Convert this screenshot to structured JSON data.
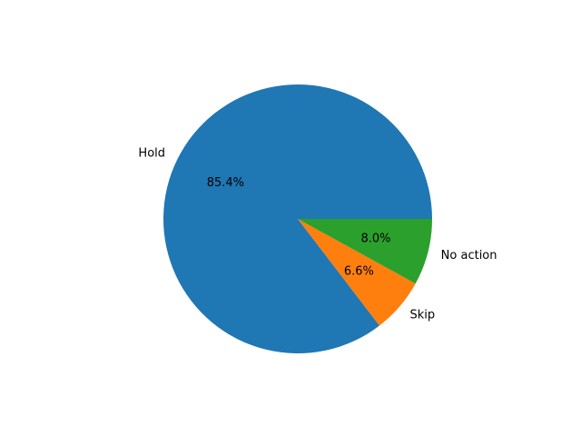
{
  "chart_data": {
    "type": "pie",
    "title": "",
    "categories": [
      "Hold",
      "Skip",
      "No action"
    ],
    "values": [
      85.4,
      6.6,
      8.0
    ],
    "value_labels": [
      "85.4%",
      "6.6%",
      "8.0%"
    ],
    "colors": [
      "#1f77b4",
      "#ff7f0e",
      "#2ca02c"
    ],
    "start_angle_deg": 0,
    "direction": "counterclockwise",
    "legend": "none"
  }
}
